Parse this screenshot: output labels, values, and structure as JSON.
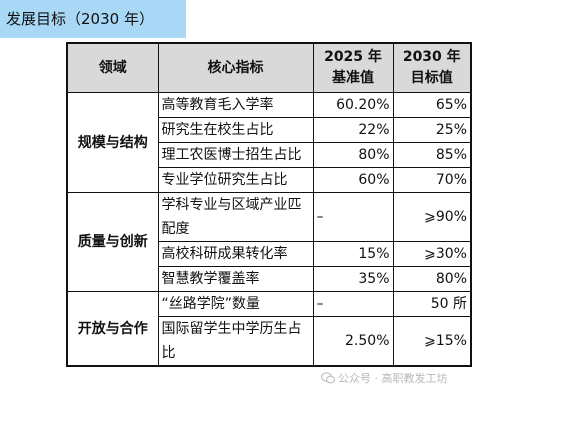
{
  "title": "发展目标（2030 年）",
  "table": {
    "headers": [
      "领域",
      "核心指标",
      "2025 年基准值",
      "2030 年目标值"
    ],
    "header_lines": [
      [
        "领域"
      ],
      [
        "核心指标"
      ],
      [
        "2025 年",
        "基准值"
      ],
      [
        "2030 年",
        "目标值"
      ]
    ],
    "groups": [
      {
        "domain": "规模与结构",
        "rows": [
          {
            "indicator": "高等教育毛入学率",
            "base": "60.20%",
            "target": "65%"
          },
          {
            "indicator": "研究生在校生占比",
            "base": "22%",
            "target": "25%"
          },
          {
            "indicator": "理工农医博士招生占比",
            "base": "80%",
            "target": "85%"
          },
          {
            "indicator": "专业学位研究生占比",
            "base": "60%",
            "target": "70%"
          }
        ]
      },
      {
        "domain": "质量与创新",
        "rows": [
          {
            "indicator": "学科专业与区域产业匹配度",
            "base": "–",
            "target": "⩾90%"
          },
          {
            "indicator": "高校科研成果转化率",
            "base": "15%",
            "target": "⩾30%"
          },
          {
            "indicator": "智慧教学覆盖率",
            "base": "35%",
            "target": "80%"
          }
        ]
      },
      {
        "domain": "开放与合作",
        "rows": [
          {
            "indicator": "“丝路学院”数量",
            "base": "–",
            "target": "50 所"
          },
          {
            "indicator": "国际留学生中学历生占比",
            "base": "2.50%",
            "target": "⩾15%"
          }
        ]
      }
    ]
  },
  "watermark": {
    "text": "公众号 · 高职教发工坊",
    "icon": "wechat-icon"
  }
}
